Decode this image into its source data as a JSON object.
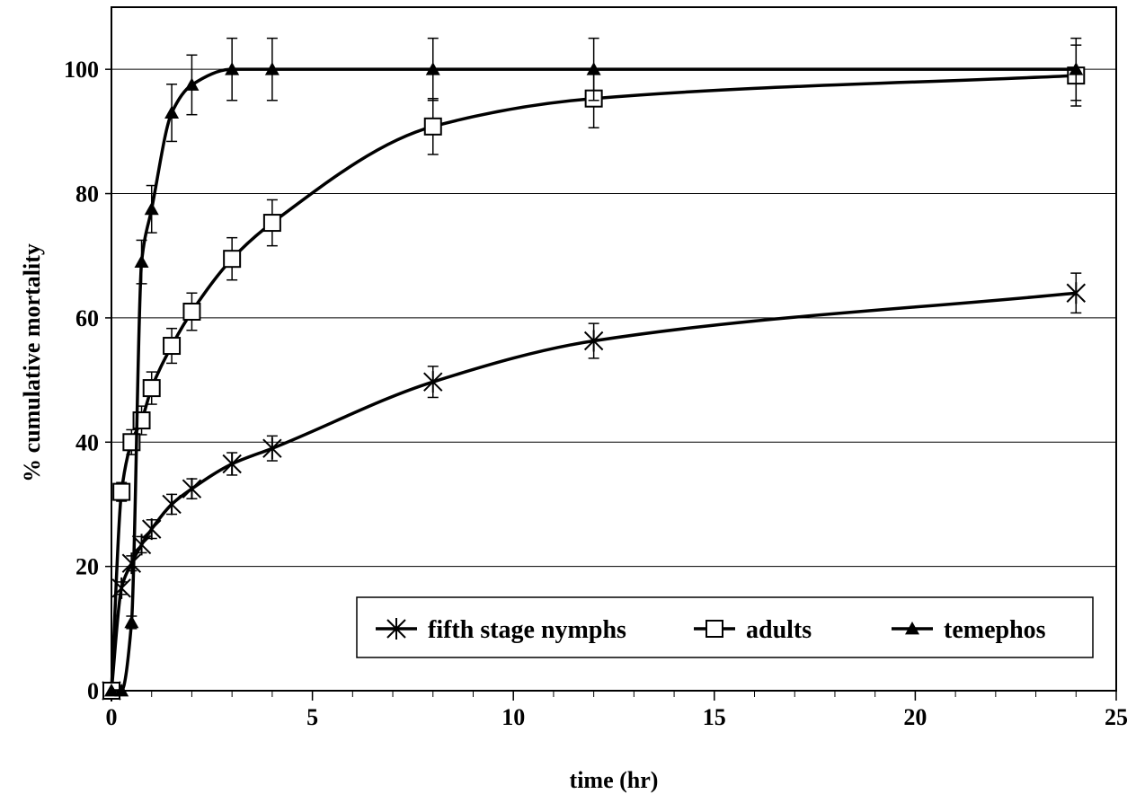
{
  "chart_data": {
    "type": "line",
    "title": "",
    "xlabel": "time (hr)",
    "ylabel": "% cumulative mortality",
    "xlim": [
      0,
      25
    ],
    "ylim": [
      0,
      100
    ],
    "y_display_max": 110,
    "x_major_ticks": [
      0,
      5,
      10,
      15,
      20,
      25
    ],
    "x_minor_step": 1,
    "y_ticks": [
      0,
      20,
      40,
      60,
      80,
      100
    ],
    "grid": "horizontal",
    "legend_position": "bottom-right",
    "line_color": "#000000",
    "series": [
      {
        "name": "fifth stage nymphs",
        "marker": "x-cross",
        "x": [
          0,
          0.25,
          0.5,
          0.75,
          1,
          1.5,
          2,
          3,
          4,
          8,
          12,
          24
        ],
        "y": [
          0,
          16.5,
          20.5,
          23.5,
          26,
          30,
          32.5,
          36.5,
          39,
          49.7,
          56.3,
          64
        ],
        "err": [
          0,
          1,
          1.2,
          1.3,
          1.5,
          1.6,
          1.6,
          1.8,
          2,
          2.5,
          2.8,
          3.2
        ]
      },
      {
        "name": "adults",
        "marker": "open-square",
        "x": [
          0,
          0.25,
          0.5,
          0.75,
          1,
          1.5,
          2,
          3,
          4,
          8,
          12,
          24
        ],
        "y": [
          0,
          32,
          40,
          43.5,
          48.7,
          55.5,
          61,
          69.5,
          75.3,
          90.8,
          95.3,
          99
        ],
        "err": [
          0,
          1.5,
          2,
          2.3,
          2.6,
          2.8,
          3,
          3.4,
          3.7,
          4.5,
          4.7,
          4.9
        ]
      },
      {
        "name": "temephos",
        "marker": "filled-triangle",
        "x": [
          0,
          0.25,
          0.5,
          0.75,
          1,
          1.5,
          2,
          3,
          4,
          8,
          12,
          24
        ],
        "y": [
          0,
          0,
          11,
          69,
          77.5,
          93,
          97.5,
          100,
          100,
          100,
          100,
          100
        ],
        "err": [
          0,
          0,
          1,
          3.5,
          3.8,
          4.6,
          4.8,
          5,
          5,
          5,
          5,
          5
        ]
      }
    ]
  }
}
